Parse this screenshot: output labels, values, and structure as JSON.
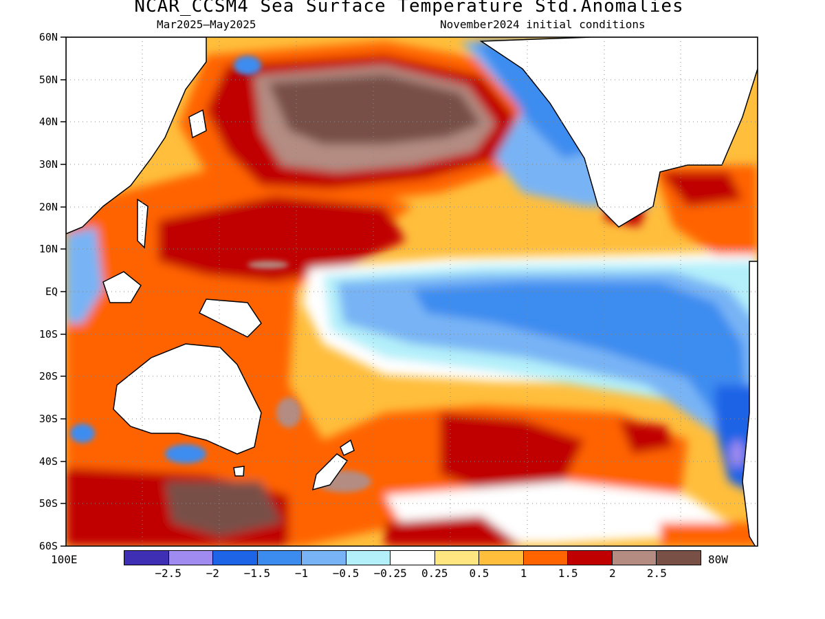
{
  "title": "NCAR_CCSM4 Sea Surface Temperature Std.Anomalies",
  "subtitle_left": "Mar2025–May2025",
  "subtitle_right": "November2024 initial conditions",
  "lat_labels": [
    "60N",
    "50N",
    "40N",
    "30N",
    "20N",
    "10N",
    "EQ",
    "10S",
    "20S",
    "30S",
    "40S",
    "50S",
    "60S"
  ],
  "lon_left": "100E",
  "lon_right": "80W",
  "colorbar": {
    "colors": [
      "#3f2fb5",
      "#a08cf0",
      "#1e64e6",
      "#3c8cf0",
      "#78b4f5",
      "#b4f0fa",
      "#ffffff",
      "#ffe680",
      "#ffbe3c",
      "#ff6400",
      "#c00000",
      "#b48c82",
      "#785046"
    ],
    "labels": [
      "−2.5",
      "−2",
      "−1.5",
      "−1",
      "−0.5",
      "−0.25",
      "0.25",
      "0.5",
      "1",
      "1.5",
      "2",
      "2.5"
    ]
  },
  "chart_data": {
    "type": "heatmap",
    "variable": "Sea Surface Temperature Std.Anomalies",
    "lat_range": [
      "60S",
      "60N"
    ],
    "lon_range": [
      "100E",
      "80W"
    ],
    "levels": [
      -2.5,
      -2,
      -1.5,
      -1,
      -0.5,
      -0.25,
      0.25,
      0.5,
      1,
      1.5,
      2,
      2.5
    ],
    "features": [
      {
        "region": "equatorial central-east Pacific",
        "anomaly": -1
      },
      {
        "region": "North Pacific 35N-50N, 160E-150W",
        "anomaly": 2.5
      },
      {
        "region": "western tropical Pacific 5N-20N",
        "anomaly": 2
      },
      {
        "region": "south-central Pacific 30S-45S",
        "anomaly": 1.5
      },
      {
        "region": "coast of Peru / Chile",
        "anomaly": -1.5
      },
      {
        "region": "northeast Pacific coast 30N-55N",
        "anomaly": -1
      }
    ]
  }
}
